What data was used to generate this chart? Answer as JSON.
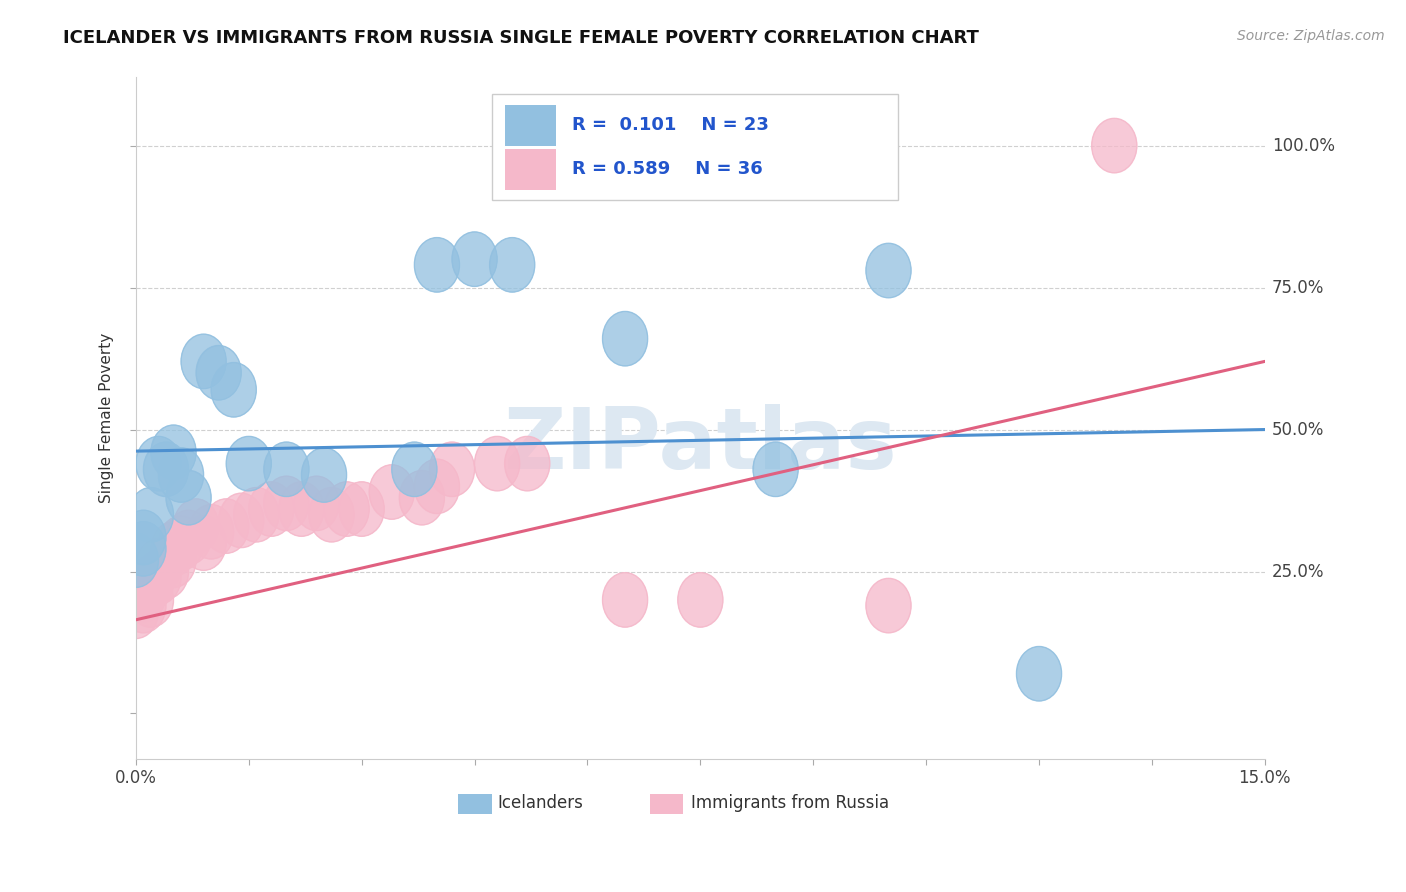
{
  "title": "ICELANDER VS IMMIGRANTS FROM RUSSIA SINGLE FEMALE POVERTY CORRELATION CHART",
  "source": "Source: ZipAtlas.com",
  "ylabel": "Single Female Poverty",
  "xlim": [
    0.0,
    0.15
  ],
  "ylim": [
    -0.08,
    1.12
  ],
  "blue_R": 0.101,
  "blue_N": 23,
  "pink_R": 0.589,
  "pink_N": 36,
  "blue_color": "#92c0e0",
  "pink_color": "#f5b8ca",
  "blue_line_color": "#4d90d0",
  "pink_line_color": "#e06080",
  "legend_label_blue": "Icelanders",
  "legend_label_pink": "Immigrants from Russia",
  "blue_line_y0": 0.462,
  "blue_line_y1": 0.5,
  "pink_line_y0": 0.165,
  "pink_line_y1": 0.62,
  "blue_x": [
    0.0,
    0.001,
    0.001,
    0.002,
    0.003,
    0.004,
    0.005,
    0.006,
    0.007,
    0.009,
    0.011,
    0.013,
    0.015,
    0.02,
    0.025,
    0.037,
    0.04,
    0.045,
    0.05,
    0.065,
    0.085,
    0.1,
    0.12
  ],
  "blue_y": [
    0.27,
    0.29,
    0.31,
    0.35,
    0.44,
    0.43,
    0.46,
    0.42,
    0.38,
    0.62,
    0.6,
    0.57,
    0.44,
    0.43,
    0.42,
    0.43,
    0.79,
    0.8,
    0.79,
    0.66,
    0.43,
    0.78,
    0.07
  ],
  "pink_x": [
    0.0,
    0.001,
    0.001,
    0.001,
    0.002,
    0.002,
    0.003,
    0.003,
    0.004,
    0.005,
    0.005,
    0.006,
    0.007,
    0.008,
    0.009,
    0.01,
    0.012,
    0.014,
    0.016,
    0.018,
    0.02,
    0.022,
    0.024,
    0.026,
    0.028,
    0.03,
    0.034,
    0.038,
    0.04,
    0.042,
    0.048,
    0.052,
    0.065,
    0.075,
    0.1,
    0.13
  ],
  "pink_y": [
    0.18,
    0.19,
    0.22,
    0.21,
    0.2,
    0.23,
    0.24,
    0.26,
    0.25,
    0.27,
    0.29,
    0.3,
    0.31,
    0.33,
    0.3,
    0.32,
    0.33,
    0.34,
    0.35,
    0.36,
    0.37,
    0.36,
    0.37,
    0.35,
    0.36,
    0.36,
    0.39,
    0.38,
    0.4,
    0.43,
    0.44,
    0.44,
    0.2,
    0.2,
    0.19,
    1.0
  ],
  "ytick_positions": [
    0.0,
    0.25,
    0.5,
    0.75,
    1.0
  ],
  "ytick_labels_right": [
    "",
    "25.0%",
    "50.0%",
    "75.0%",
    "100.0%"
  ],
  "watermark_color": "#dde8f2"
}
